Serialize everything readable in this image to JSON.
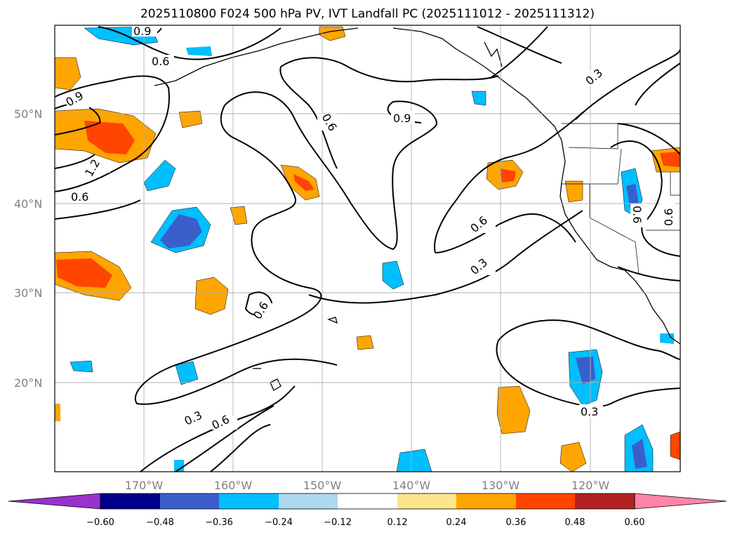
{
  "title": "2025110800 F024 500 hPa PV, IVT Landfall PC (2025111012 - 2025111312)",
  "map": {
    "lat_labels": [
      "50°N",
      "40°N",
      "30°N",
      "20°N"
    ],
    "lon_labels": [
      "170°W",
      "160°W",
      "150°W",
      "140°W",
      "130°W",
      "120°W"
    ],
    "contour_labels": [
      "0.9",
      "0.6",
      "0.9",
      "1.2",
      "0.6",
      "0.6",
      "0.9",
      "0.3",
      "0.6",
      "0.3",
      "0.6",
      "0.3",
      "0.6",
      "0.3",
      "0.6",
      "0.6"
    ]
  },
  "colorbar": {
    "ticks": [
      "−0.60",
      "−0.48",
      "−0.36",
      "−0.24",
      "−0.12",
      "0.12",
      "0.24",
      "0.36",
      "0.48",
      "0.60"
    ],
    "colors": [
      "#9932cc",
      "#00008b",
      "#3a5fcd",
      "#00bfff",
      "#add8f0",
      "#ffffff",
      "#fde68a",
      "#ffa500",
      "#ff4500",
      "#b22222",
      "#ff85a8"
    ]
  }
}
